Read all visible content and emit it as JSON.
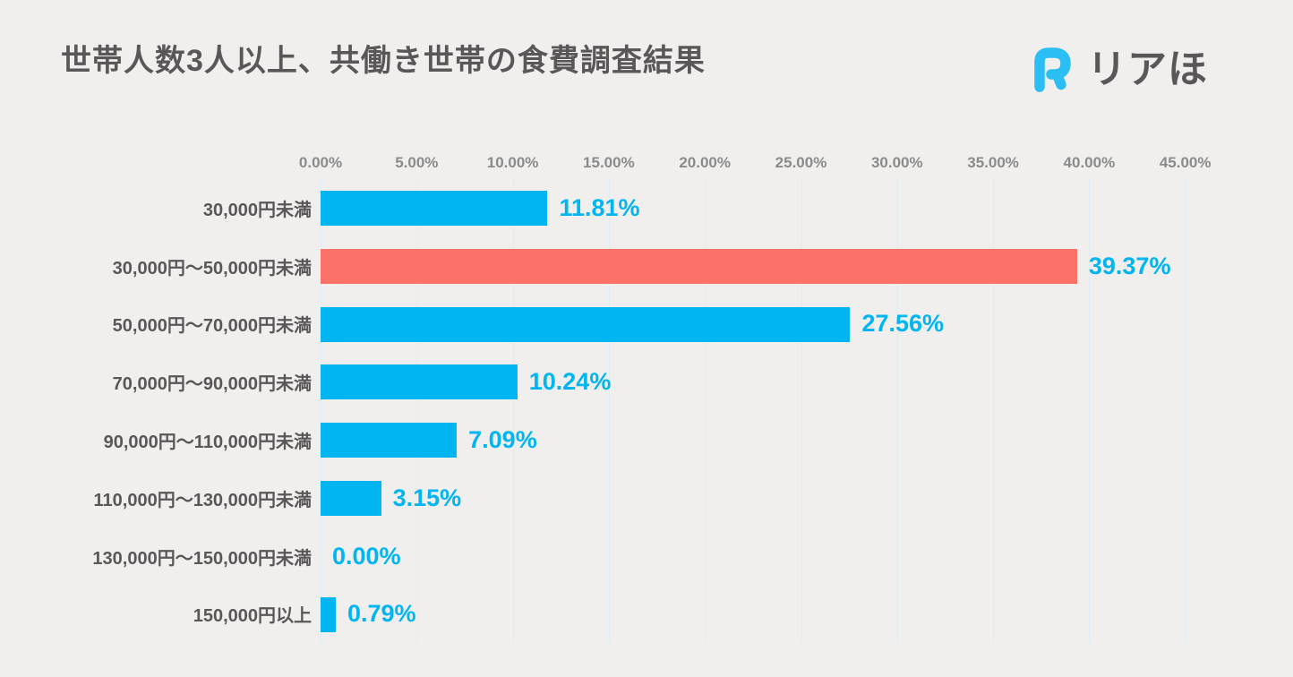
{
  "header": {
    "title": "世帯人数3人以上、共働き世帯の食費調査結果",
    "brand": {
      "name": "リアほ",
      "icon": "riaho-r-logo-icon",
      "icon_color": "#2bbef5",
      "text_color": "#595757"
    }
  },
  "chart_data": {
    "type": "bar",
    "orientation": "horizontal",
    "title": "世帯人数3人以上、共働き世帯の食費調査結果",
    "categories": [
      "30,000円未満",
      "30,000円〜50,000円未満",
      "50,000円〜70,000円未満",
      "70,000円〜90,000円未満",
      "90,000円〜110,000円未満",
      "110,000円〜130,000円未満",
      "130,000円〜150,000円未満",
      "150,000円以上"
    ],
    "values": [
      11.81,
      39.37,
      27.56,
      10.24,
      7.09,
      3.15,
      0.0,
      0.79
    ],
    "value_labels": [
      "11.81%",
      "39.37%",
      "27.56%",
      "10.24%",
      "7.09%",
      "3.15%",
      "0.00%",
      "0.79%"
    ],
    "x_ticks": [
      "0.00%",
      "5.00%",
      "10.00%",
      "15.00%",
      "20.00%",
      "25.00%",
      "30.00%",
      "35.00%",
      "40.00%",
      "45.00%"
    ],
    "xlim": [
      0,
      45
    ],
    "xlabel": "",
    "ylabel": "",
    "grid": true,
    "legend": false,
    "highlight_index": 1,
    "colors": {
      "background": "#f0efed",
      "bar_default": "#00b5f0",
      "bar_highlight": "#fc7168",
      "value_label": "#00b5f0",
      "category_label": "#595757",
      "tick_label": "#8b8b8b",
      "gridline": "#e0eef3",
      "title": "#595757"
    }
  }
}
